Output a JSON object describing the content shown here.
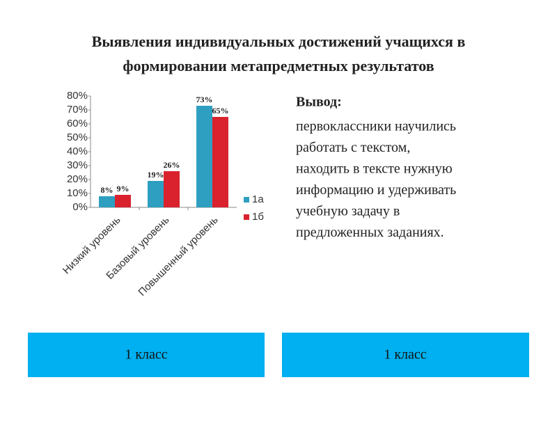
{
  "title": [
    "Выявления индивидуальных достижений учащихся в",
    "формировании метапредметных результатов"
  ],
  "conclusion": {
    "heading": "Вывод:",
    "lines": [
      "первоклассники научились",
      "работать с текстом,",
      "находить в тексте нужную",
      "информацию и удерживать",
      "учебную задачу в",
      "предложенных заданиях."
    ]
  },
  "panels": [
    "1 класс",
    "1 класс"
  ],
  "chart_data": {
    "type": "bar",
    "categories": [
      "Низкий уровень",
      "Базовый уровень",
      "Повышенный уровень"
    ],
    "series": [
      {
        "name": "1а",
        "color": "#2e9fc0",
        "values": [
          8,
          19,
          73
        ],
        "value_labels": [
          "8%",
          "19%",
          "73%"
        ]
      },
      {
        "name": "1б",
        "color": "#d9222e",
        "values": [
          9,
          26,
          65
        ],
        "value_labels": [
          "9%",
          "26%",
          "65%"
        ]
      }
    ],
    "ylim": [
      0,
      80
    ],
    "yticks": [
      {
        "value": 0,
        "label": "0%"
      },
      {
        "value": 10,
        "label": "10%"
      },
      {
        "value": 20,
        "label": "20%"
      },
      {
        "value": 30,
        "label": "30%"
      },
      {
        "value": 40,
        "label": "40%"
      },
      {
        "value": 50,
        "label": "50%"
      },
      {
        "value": 60,
        "label": "60%"
      },
      {
        "value": 70,
        "label": "70%"
      },
      {
        "value": 80,
        "label": "80%"
      }
    ],
    "legend": "right"
  }
}
